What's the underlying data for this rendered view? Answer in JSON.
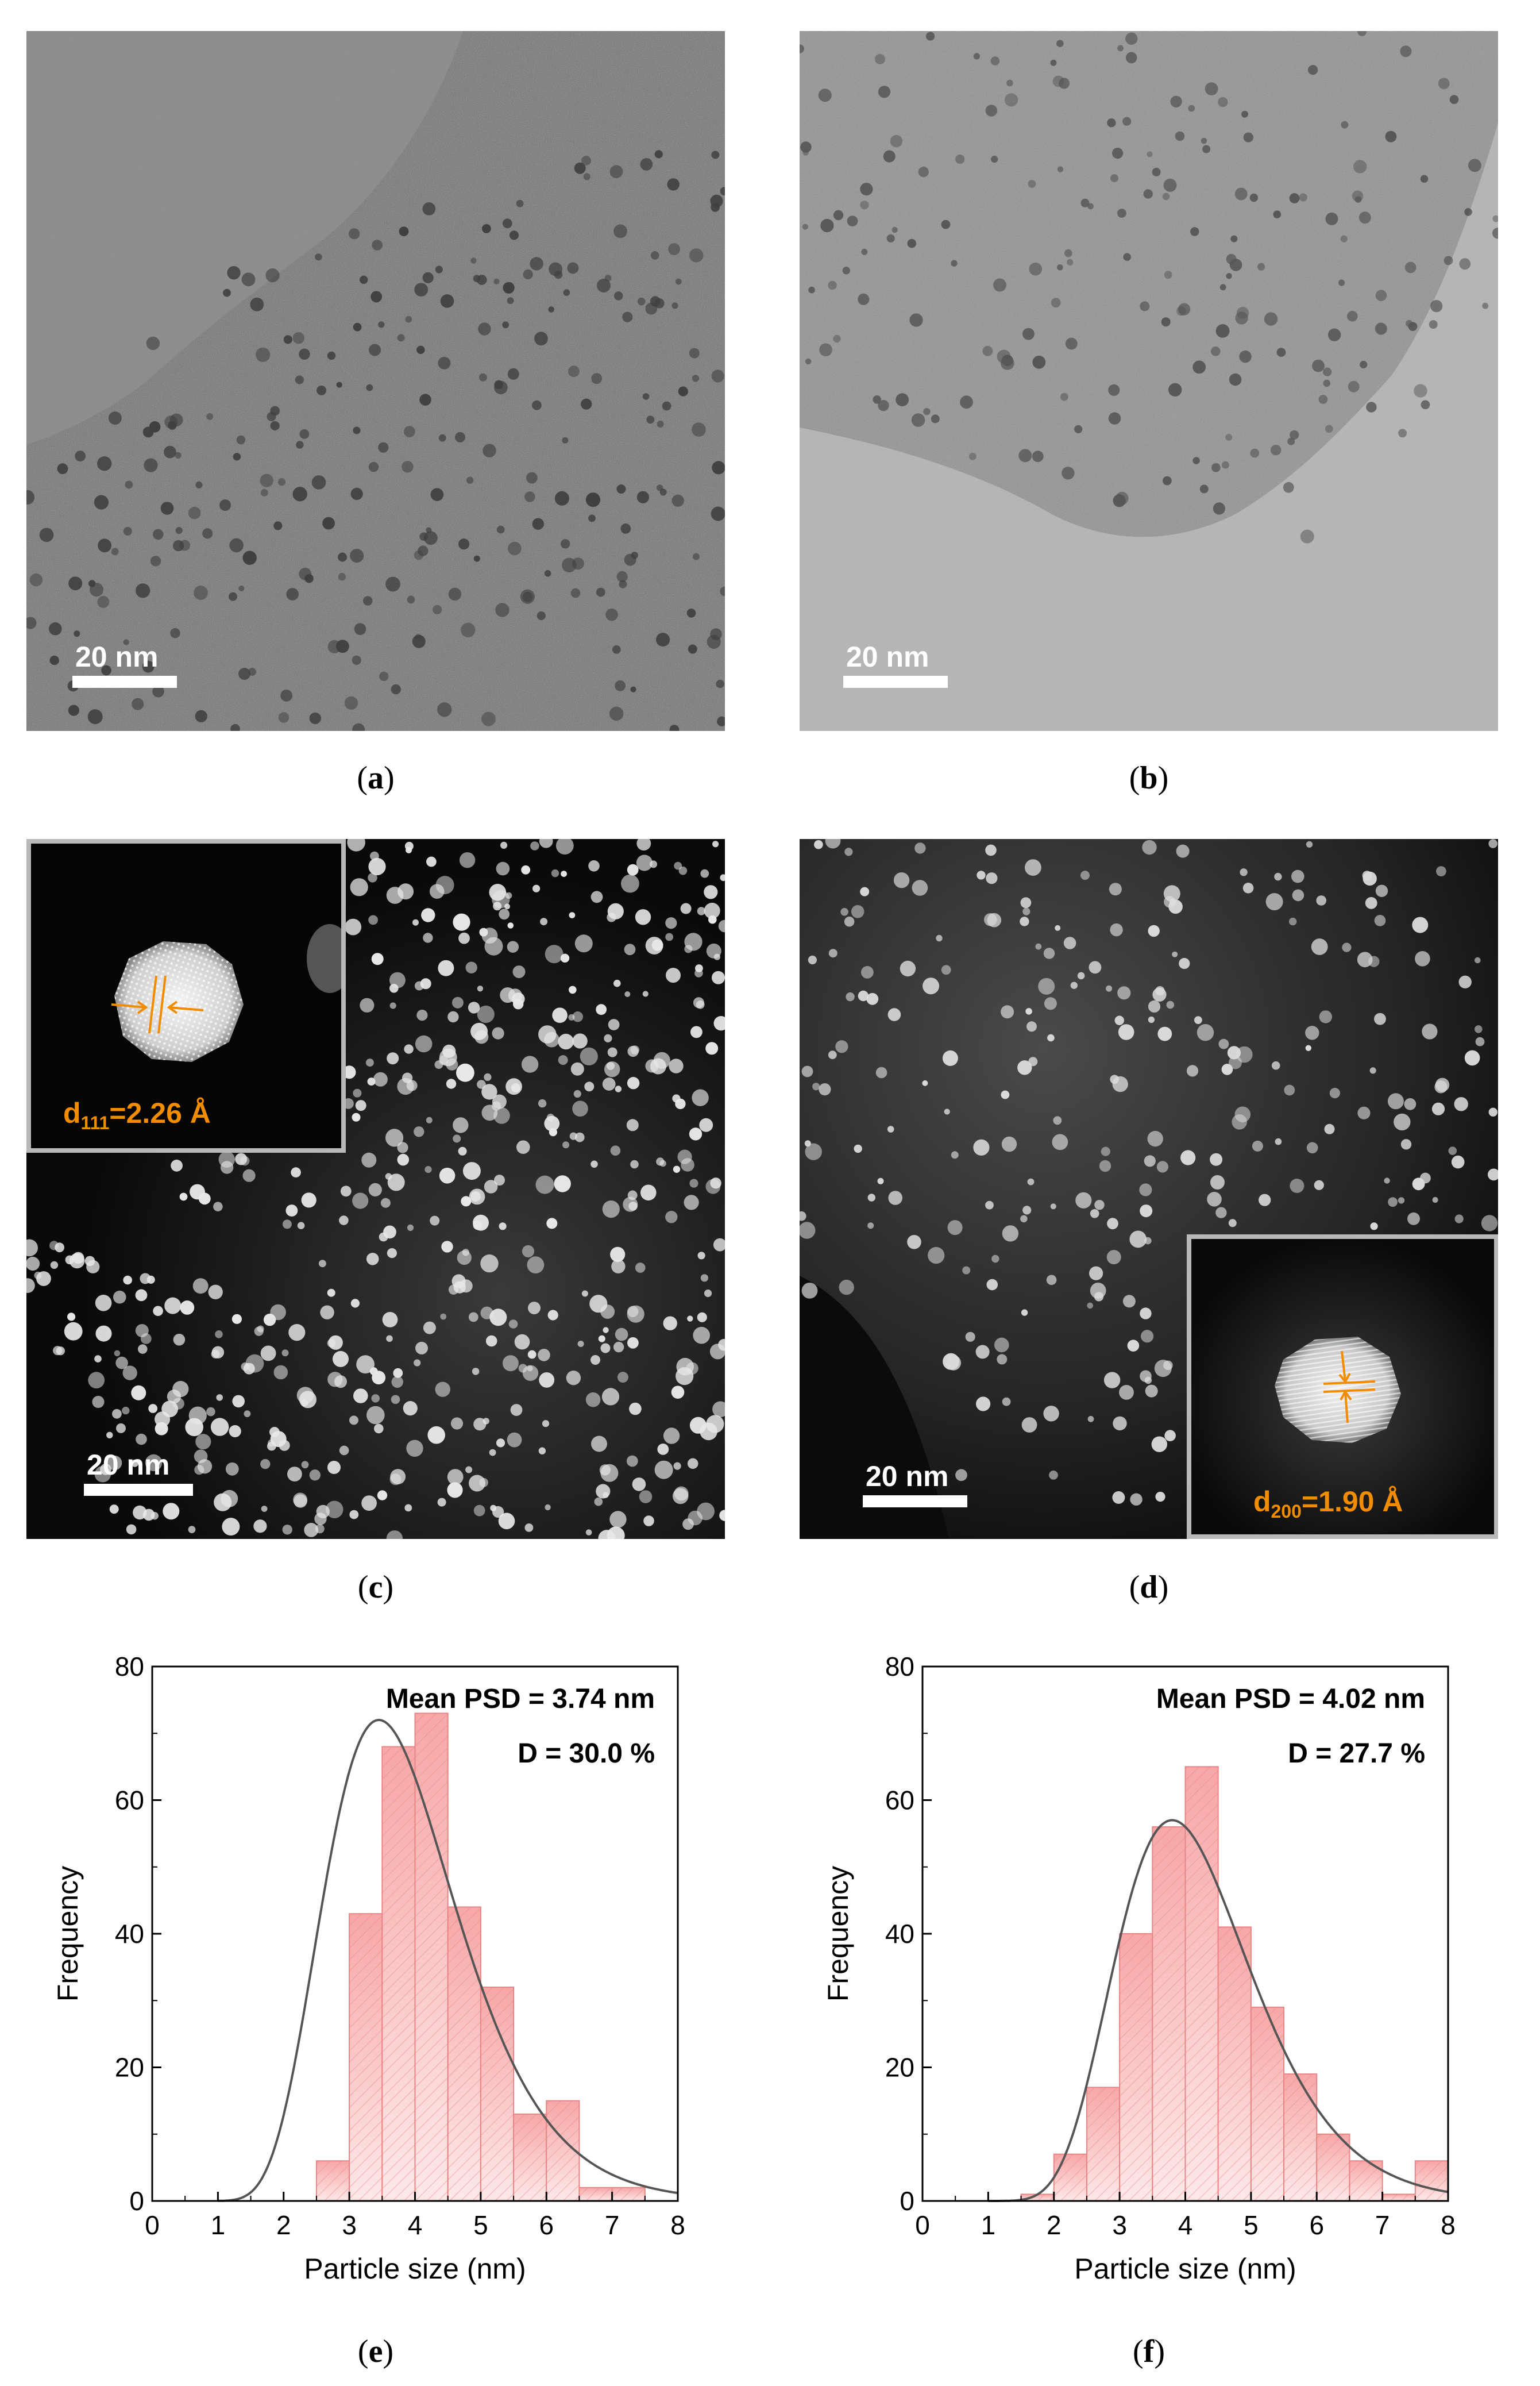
{
  "panels": {
    "a": {
      "caption": "a",
      "scale_bar": "20 nm"
    },
    "b": {
      "caption": "b",
      "scale_bar": "20 nm"
    },
    "c": {
      "caption": "c",
      "scale_bar": "20 nm",
      "inset_label_prefix": "d",
      "inset_label_sub": "111",
      "inset_label_value": "=2.26 Å"
    },
    "d": {
      "caption": "d",
      "scale_bar": "20 nm",
      "inset_label_prefix": "d",
      "inset_label_sub": "200",
      "inset_label_value": "=1.90 Å"
    },
    "e": {
      "caption": "e"
    },
    "f": {
      "caption": "f"
    }
  },
  "colors": {
    "bar_fill": "#f7a7a7",
    "bar_hatch": "#e98585",
    "fit_line": "#555555",
    "annotation": "#f08c00"
  },
  "chart_data": [
    {
      "type": "bar",
      "panel": "e",
      "xlabel": "Particle size (nm)",
      "ylabel": "Frequency",
      "xlim": [
        0,
        8
      ],
      "ylim": [
        0,
        80
      ],
      "xticks": [
        0,
        1,
        2,
        3,
        4,
        5,
        6,
        7,
        8
      ],
      "yticks": [
        0,
        20,
        40,
        60,
        80
      ],
      "bin_width": 0.5,
      "bin_starts": [
        2.0,
        2.5,
        3.0,
        3.5,
        4.0,
        4.5,
        5.0,
        5.5,
        6.0,
        6.5,
        7.0
      ],
      "values": [
        0,
        6,
        43,
        68,
        73,
        44,
        32,
        13,
        15,
        2,
        2
      ],
      "fit": {
        "type": "lognormal",
        "mean_nm": 3.74,
        "dispersion_pct": 30.0,
        "peak_x": 3.45,
        "peak_y": 72
      },
      "annotations": [
        "Mean PSD = 3.74 nm",
        "D = 30.0 %"
      ]
    },
    {
      "type": "bar",
      "panel": "f",
      "xlabel": "Particle size (nm)",
      "ylabel": "Frequency",
      "xlim": [
        0,
        8
      ],
      "ylim": [
        0,
        80
      ],
      "xticks": [
        0,
        1,
        2,
        3,
        4,
        5,
        6,
        7,
        8
      ],
      "yticks": [
        0,
        20,
        40,
        60,
        80
      ],
      "bin_width": 0.5,
      "bin_starts": [
        1.5,
        2.0,
        2.5,
        3.0,
        3.5,
        4.0,
        4.5,
        5.0,
        5.5,
        6.0,
        6.5,
        7.0,
        7.5
      ],
      "values": [
        1,
        7,
        17,
        40,
        56,
        65,
        41,
        29,
        19,
        10,
        6,
        1,
        6
      ],
      "fit": {
        "type": "lognormal",
        "mean_nm": 4.02,
        "dispersion_pct": 27.7,
        "peak_x": 3.8,
        "peak_y": 57
      },
      "annotations": [
        "Mean PSD = 4.02 nm",
        "D = 27.7 %"
      ]
    }
  ]
}
